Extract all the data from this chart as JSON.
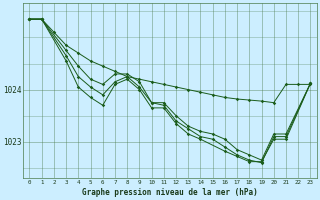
{
  "title": "Graphe pression niveau de la mer (hPa)",
  "background_color": "#cceeff",
  "grid_color": "#4a7a4a",
  "line_color": "#1a5c1a",
  "xlim": [
    -0.5,
    23.5
  ],
  "ylim": [
    1022.3,
    1025.65
  ],
  "yticks": [
    1023,
    1024
  ],
  "xticks": [
    0,
    1,
    2,
    3,
    4,
    5,
    6,
    7,
    8,
    9,
    10,
    11,
    12,
    13,
    14,
    15,
    16,
    17,
    18,
    19,
    20,
    21,
    22,
    23
  ],
  "series": [
    {
      "x": [
        0,
        1,
        2,
        3,
        4,
        5,
        6,
        7,
        8,
        9,
        10,
        11,
        12,
        13,
        14,
        15,
        16,
        17,
        18,
        19,
        20,
        21,
        22,
        23
      ],
      "y": [
        1025.35,
        1025.35,
        1025.1,
        1024.85,
        1024.7,
        1024.55,
        1024.45,
        1024.35,
        1024.25,
        1024.2,
        1024.15,
        1024.1,
        1024.05,
        1024.0,
        1023.95,
        1023.9,
        1023.85,
        1023.82,
        1023.8,
        1023.78,
        1023.75,
        1024.1,
        1024.1,
        1024.1
      ]
    },
    {
      "x": [
        0,
        1,
        3,
        4,
        5,
        6,
        7,
        8,
        9,
        10,
        11,
        12,
        13,
        14,
        15,
        16,
        17,
        18,
        19,
        20,
        21,
        23
      ],
      "y": [
        1025.35,
        1025.35,
        1024.75,
        1024.45,
        1024.2,
        1024.1,
        1024.3,
        1024.3,
        1024.15,
        1023.75,
        1023.75,
        1023.5,
        1023.3,
        1023.2,
        1023.15,
        1023.05,
        1022.85,
        1022.75,
        1022.65,
        1023.15,
        1023.15,
        1024.12
      ]
    },
    {
      "x": [
        0,
        1,
        3,
        4,
        5,
        6,
        7,
        8,
        9,
        10,
        11,
        12,
        13,
        14,
        15,
        16,
        17,
        18,
        19,
        20,
        21,
        23
      ],
      "y": [
        1025.35,
        1025.35,
        1024.65,
        1024.25,
        1024.05,
        1023.9,
        1024.15,
        1024.25,
        1024.05,
        1023.75,
        1023.7,
        1023.4,
        1023.25,
        1023.1,
        1023.05,
        1022.9,
        1022.75,
        1022.65,
        1022.6,
        1023.1,
        1023.1,
        1024.12
      ]
    },
    {
      "x": [
        0,
        1,
        3,
        4,
        5,
        6,
        7,
        8,
        9,
        10,
        11,
        12,
        13,
        14,
        16,
        17,
        18,
        19,
        20,
        21,
        23
      ],
      "y": [
        1025.35,
        1025.35,
        1024.55,
        1024.05,
        1023.85,
        1023.7,
        1024.1,
        1024.2,
        1024.0,
        1023.65,
        1023.65,
        1023.35,
        1023.15,
        1023.05,
        1022.82,
        1022.72,
        1022.62,
        1022.62,
        1023.05,
        1023.05,
        1024.12
      ]
    }
  ]
}
